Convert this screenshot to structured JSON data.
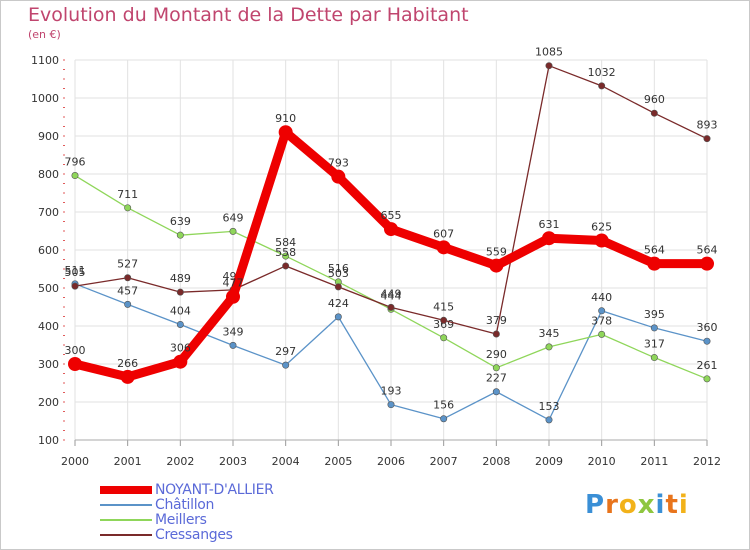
{
  "chart_data": {
    "type": "line",
    "title": "Evolution du Montant de la Dette par Habitant",
    "subtitle": "(en €)",
    "x": [
      "2000",
      "2001",
      "2002",
      "2003",
      "2004",
      "2005",
      "2006",
      "2007",
      "2008",
      "2009",
      "2010",
      "2011",
      "2012"
    ],
    "ylim": [
      100,
      1100
    ],
    "yticks": [
      100,
      200,
      300,
      400,
      500,
      600,
      700,
      800,
      900,
      1000,
      1100
    ],
    "grid": true,
    "series": [
      {
        "name": "NOYANT-D'ALLIER",
        "color": "#ee0000",
        "values": [
          300,
          266,
          306,
          477,
          910,
          793,
          655,
          607,
          559,
          631,
          625,
          564,
          564
        ],
        "labels": [
          "300",
          "266",
          "306",
          "477",
          "910",
          "793",
          "655",
          "607",
          "559",
          "631",
          "625",
          "564",
          "564"
        ]
      },
      {
        "name": "Châtillon",
        "color": "#5b93c8",
        "values": [
          511,
          457,
          404,
          349,
          297,
          424,
          193,
          156,
          227,
          153,
          440,
          395,
          360
        ],
        "labels": [
          "511",
          "457",
          "404",
          "349",
          "297",
          "424",
          "193",
          "156",
          "227",
          "153",
          "440",
          "395",
          "360"
        ]
      },
      {
        "name": "Meillers",
        "color": "#8fd65a",
        "values": [
          796,
          711,
          639,
          649,
          584,
          516,
          444,
          369,
          290,
          345,
          378,
          317,
          261
        ],
        "labels": [
          "796",
          "711",
          "639",
          "649",
          "584",
          "516",
          "444",
          "369",
          "290",
          "345",
          "378",
          "317",
          "261"
        ]
      },
      {
        "name": "Cressanges",
        "color": "#7a2a2a",
        "values": [
          505,
          527,
          489,
          495,
          558,
          503,
          449,
          415,
          379,
          1085,
          1032,
          960,
          893
        ],
        "labels": [
          "505",
          "527",
          "489",
          "495",
          "558",
          "503",
          "449",
          "415",
          "379",
          "1085",
          "1032",
          "960",
          "893"
        ]
      }
    ]
  },
  "logo": {
    "letters": [
      "P",
      "r",
      "o",
      "x",
      "i",
      "t",
      "i"
    ],
    "colors": [
      "#3a8fd6",
      "#e8741c",
      "#f2b21a",
      "#8ec63f",
      "#3a8fd6",
      "#e8741c",
      "#f2b21a"
    ]
  }
}
